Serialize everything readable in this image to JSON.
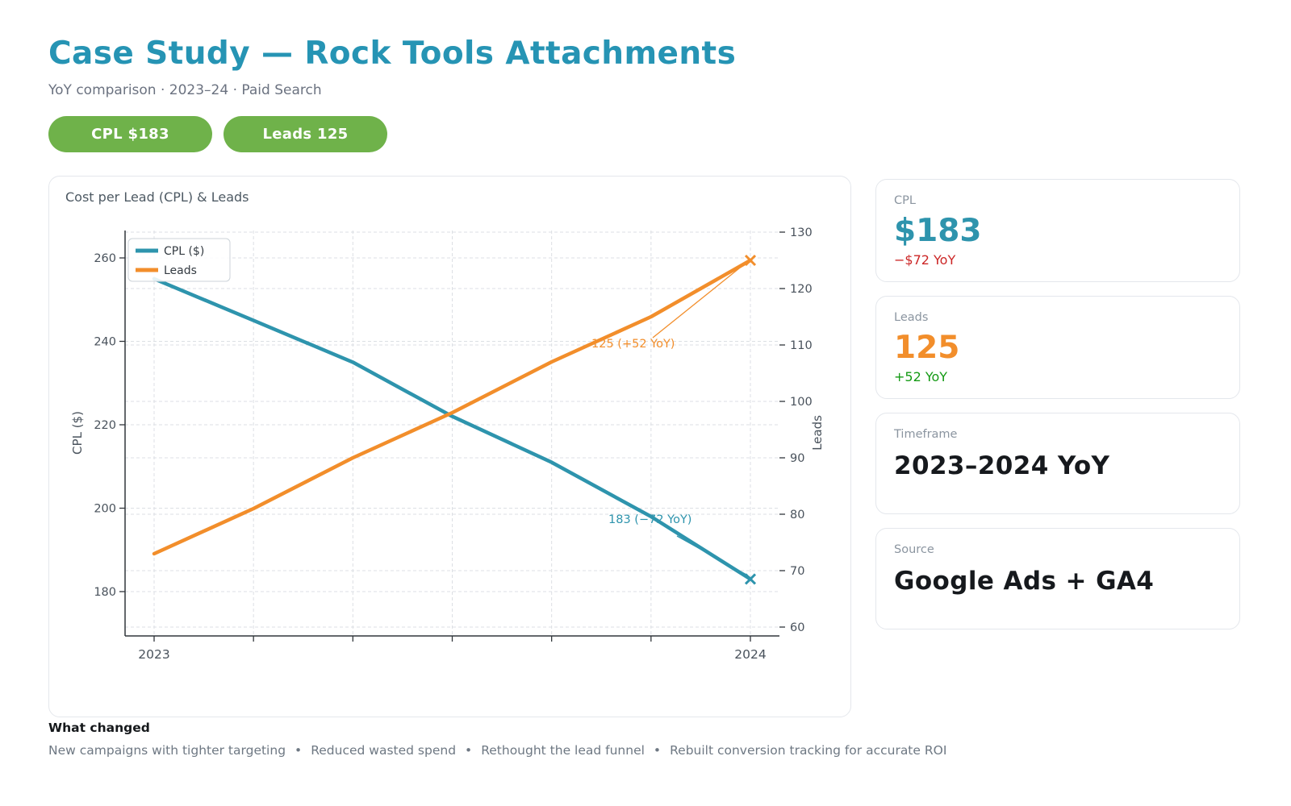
{
  "header": {
    "title": "Case Study — Rock Tools Attachments",
    "subtitle": "YoY comparison · 2023–24 · Paid Search",
    "badges": [
      {
        "label": "CPL $183"
      },
      {
        "label": "Leads 125"
      }
    ]
  },
  "chart_data": {
    "type": "line",
    "title": "Cost per Lead (CPL) & Leads",
    "x_labels": [
      "2023",
      "",
      "",
      "",
      "",
      "",
      "2024"
    ],
    "series": [
      {
        "name": "CPL ($)",
        "axis": "left",
        "color": "#2e94ad",
        "values": [
          255,
          245,
          235,
          222,
          211,
          198,
          183
        ],
        "end_marker": "x"
      },
      {
        "name": "Leads",
        "axis": "right",
        "color": "#f28e2b",
        "values": [
          73,
          81,
          90,
          98,
          107,
          115,
          125
        ],
        "end_marker": "x"
      }
    ],
    "left_axis": {
      "label": "CPL ($)",
      "ticks": [
        180,
        200,
        220,
        240,
        260
      ],
      "range": [
        169,
        267
      ]
    },
    "right_axis": {
      "label": "Leads",
      "ticks": [
        60,
        70,
        80,
        90,
        100,
        110,
        120,
        130
      ],
      "range": [
        58,
        131
      ]
    },
    "legend": {
      "position": "upper-left"
    },
    "grid": true,
    "annotations": [
      {
        "series": "Leads",
        "text": "125 (+52 YoY)"
      },
      {
        "series": "CPL ($)",
        "text": "183 (−72 YoY)"
      }
    ]
  },
  "sidebar": {
    "cards": [
      {
        "label": "CPL",
        "value": "$183",
        "delta": "−$72 YoY",
        "value_color": "#2e94ad",
        "delta_color": "#cc2626"
      },
      {
        "label": "Leads",
        "value": "125",
        "delta": "+52 YoY",
        "value_color": "#f28e2b",
        "delta_color": "#149a14"
      },
      {
        "label": "Timeframe",
        "value": "2023–2024 YoY"
      },
      {
        "label": "Source",
        "value": "Google Ads + GA4"
      }
    ]
  },
  "footer": {
    "heading": "What changed",
    "separator": "•",
    "items": [
      "New campaigns with tighter targeting",
      "Reduced wasted spend",
      "Rethought the lead funnel",
      "Rebuilt conversion tracking for accurate ROI"
    ]
  },
  "colors": {
    "title_teal": "#2694b4",
    "series_cpl_teal": "#2e94ad",
    "series_leads_orange": "#f28e2b",
    "pill_green": "#6fb24a",
    "delta_negative_red": "#cc2626",
    "delta_positive_green": "#149a14",
    "text_gray": "#6b7280"
  }
}
